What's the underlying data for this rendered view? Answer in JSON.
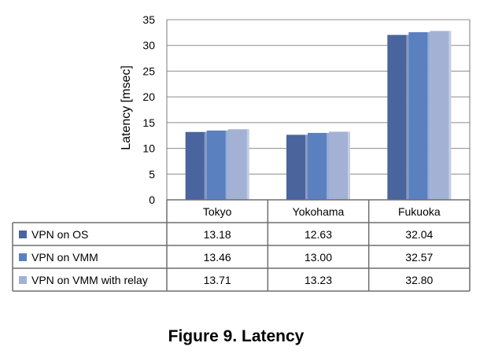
{
  "chart_data": {
    "type": "bar",
    "categories": [
      "Tokyo",
      "Yokohama",
      "Fukuoka"
    ],
    "series": [
      {
        "name": "VPN on OS",
        "color": "#4a659d",
        "values": [
          13.18,
          12.63,
          32.04
        ]
      },
      {
        "name": "VPN on VMM",
        "color": "#5b80c0",
        "values": [
          13.46,
          13.0,
          32.57
        ]
      },
      {
        "name": "VPN on VMM  with relay",
        "color": "#a3b2d4",
        "values": [
          13.71,
          13.23,
          32.8
        ]
      }
    ],
    "value_labels": [
      [
        "13.18",
        "12.63",
        "32.04"
      ],
      [
        "13.46",
        "13.00",
        "32.57"
      ],
      [
        "13.71",
        "13.23",
        "32.80"
      ]
    ],
    "ylabel": "Latency [msec]",
    "ylim": [
      0,
      35
    ],
    "yticks": [
      0,
      5,
      10,
      15,
      20,
      25,
      30,
      35
    ],
    "grid": true,
    "legend": "data-table-left"
  },
  "caption": "Figure 9. Latency"
}
